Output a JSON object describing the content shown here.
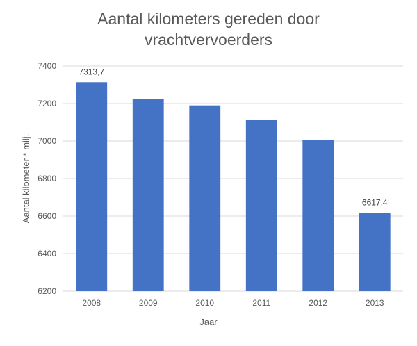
{
  "chart_data": {
    "type": "bar",
    "title_lines": [
      "Aantal kilometers gereden door",
      "vrachtvervoerders"
    ],
    "xlabel": "Jaar",
    "ylabel": "Aantal kilometer * milj.",
    "categories": [
      "2008",
      "2009",
      "2010",
      "2011",
      "2012",
      "2013"
    ],
    "values": [
      7313.7,
      7225,
      7190,
      7112,
      7005,
      6617.4
    ],
    "data_labels": [
      "7313,7",
      "",
      "",
      "",
      "",
      "6617,4"
    ],
    "ylim": [
      6200,
      7400
    ],
    "yticks": [
      "7400",
      "7200",
      "7000",
      "6800",
      "6600",
      "6400",
      "6200"
    ],
    "grid": true,
    "bar_color": "#4472C4",
    "grid_color": "#d9d9d9"
  }
}
